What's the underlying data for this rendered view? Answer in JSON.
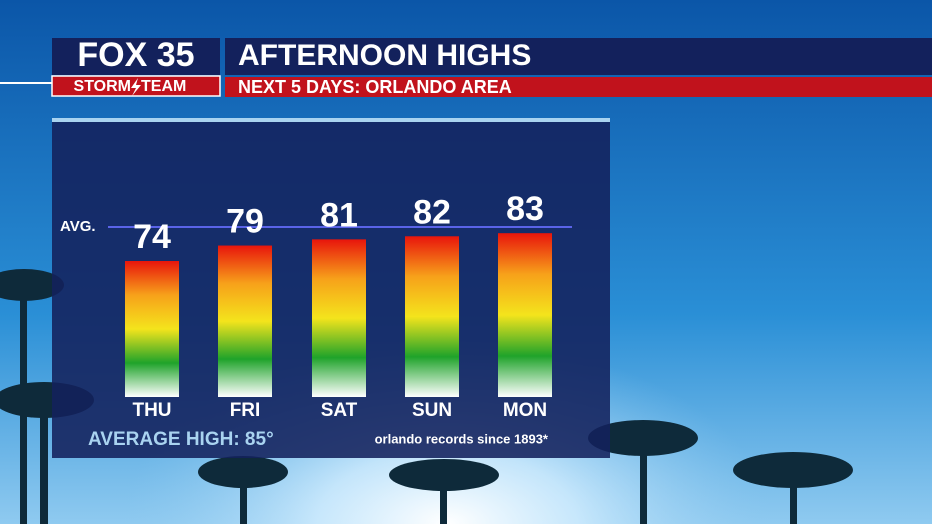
{
  "header": {
    "logo_top": "FOX 35",
    "logo_bottom": "STORM",
    "logo_bottom_2": "TEAM"
  },
  "chart_data": {
    "type": "bar",
    "title": "AFTERNOON HIGHS",
    "subtitle": "NEXT 5 DAYS: ORLANDO AREA",
    "categories": [
      "THU",
      "FRI",
      "SAT",
      "SUN",
      "MON"
    ],
    "values": [
      74,
      79,
      81,
      82,
      83
    ],
    "ylim": [
      30,
      85
    ],
    "colors": [
      "#e8150c",
      "#f7a11a",
      "#f4e41c",
      "#1fa32a",
      "#ffffff"
    ],
    "average_line": {
      "label": "AVG.",
      "value": 85
    },
    "footer_left": "AVERAGE HIGH: 85°",
    "footer_right": "orlando records since 1893*"
  }
}
